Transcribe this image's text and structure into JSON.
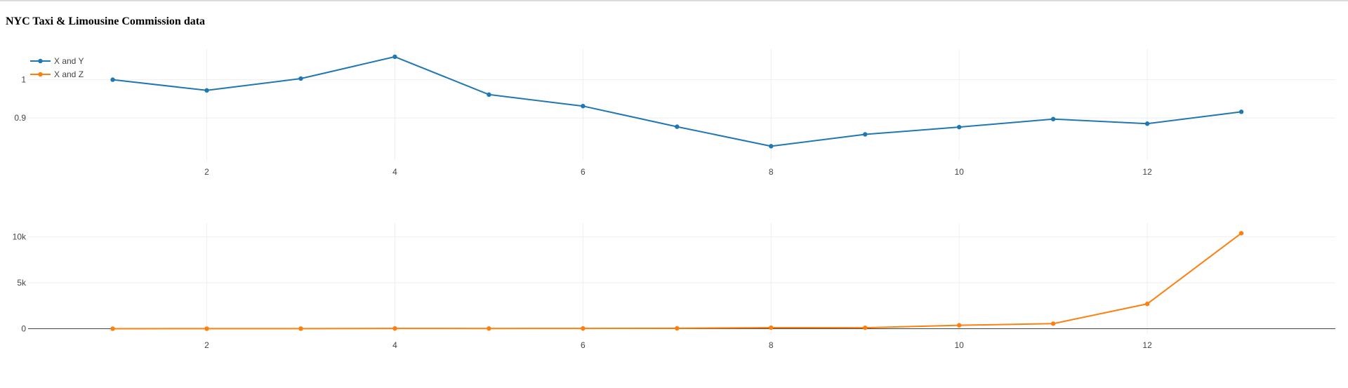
{
  "page": {
    "title": "NYC Taxi & Limousine Commission data"
  },
  "chart_data": [
    {
      "type": "line",
      "title": "",
      "xlabel": "",
      "ylabel": "",
      "x": [
        1,
        2,
        3,
        4,
        5,
        6,
        7,
        8,
        9,
        10,
        11,
        12,
        13
      ],
      "series": [
        {
          "name": "X and Y",
          "color": "#1f77b4",
          "values": [
            1.0,
            0.972,
            1.003,
            1.06,
            0.961,
            0.931,
            0.877,
            0.826,
            0.857,
            0.876,
            0.897,
            0.885,
            0.916
          ]
        }
      ],
      "xlim": [
        0.1,
        14.0
      ],
      "ylim": [
        0.79,
        1.08
      ],
      "xticks": [
        2,
        4,
        6,
        8,
        10,
        12
      ],
      "yticks": [
        0.9,
        1
      ],
      "ytick_labels": [
        "0.9",
        "1"
      ],
      "grid": true,
      "legend": "top-left"
    },
    {
      "type": "line",
      "title": "",
      "xlabel": "",
      "ylabel": "",
      "x": [
        1,
        2,
        3,
        4,
        5,
        6,
        7,
        8,
        9,
        10,
        11,
        12,
        13
      ],
      "series": [
        {
          "name": "X and Z",
          "color": "#ff7f0e",
          "values": [
            0,
            2,
            6,
            25,
            20,
            30,
            40,
            110,
            100,
            370,
            550,
            2700,
            10400
          ]
        }
      ],
      "xlim": [
        0.1,
        14.0
      ],
      "ylim": [
        -500,
        11500
      ],
      "xticks": [
        2,
        4,
        6,
        8,
        10,
        12
      ],
      "yticks": [
        0,
        5000,
        10000
      ],
      "ytick_labels": [
        "0",
        "5k",
        "10k"
      ],
      "grid": true
    }
  ]
}
